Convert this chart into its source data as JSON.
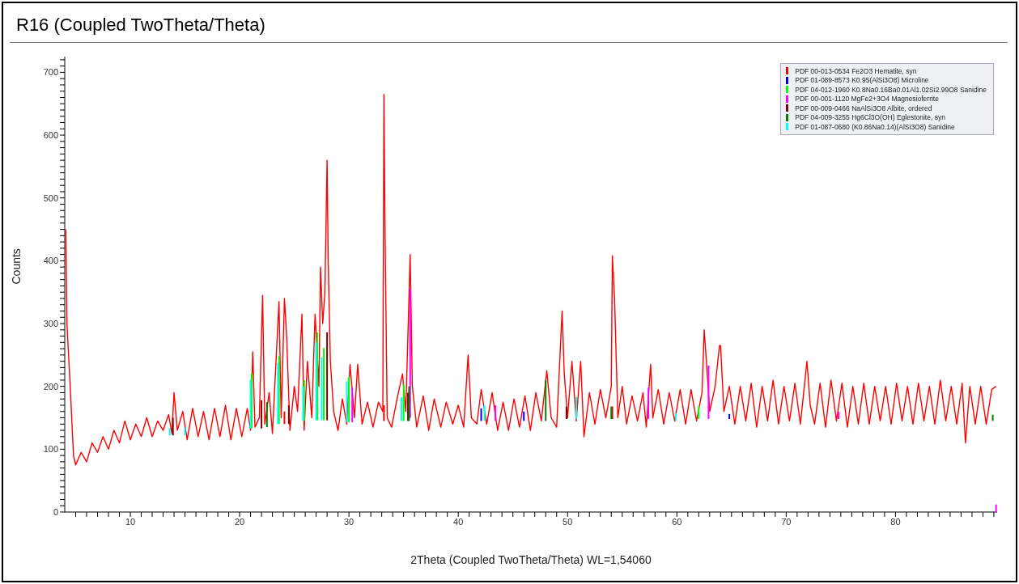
{
  "chart_data": {
    "type": "line",
    "title": "R16 (Coupled TwoTheta/Theta)",
    "xlabel": "2Theta (Coupled TwoTheta/Theta) WL=1,54060",
    "ylabel": "Counts",
    "xlim": [
      4,
      89.3
    ],
    "ylim": [
      0,
      725
    ],
    "xticks": [
      {
        "value": 5,
        "label": null
      },
      {
        "value": 6,
        "label": null
      },
      {
        "value": 7,
        "label": null
      },
      {
        "value": 8,
        "label": null
      },
      {
        "value": 9,
        "label": null
      },
      10,
      {
        "value": 11,
        "label": null
      },
      {
        "value": 12,
        "label": null
      },
      {
        "value": 13,
        "label": null
      },
      {
        "value": 14,
        "label": null
      },
      {
        "value": 15,
        "label": null
      },
      {
        "value": 16,
        "label": null
      },
      {
        "value": 17,
        "label": null
      },
      {
        "value": 18,
        "label": null
      },
      {
        "value": 19,
        "label": null
      },
      20,
      {
        "value": 21,
        "label": null
      },
      {
        "value": 22,
        "label": null
      },
      {
        "value": 23,
        "label": null
      },
      {
        "value": 24,
        "label": null
      },
      {
        "value": 25,
        "label": null
      },
      {
        "value": 26,
        "label": null
      },
      {
        "value": 27,
        "label": null
      },
      {
        "value": 28,
        "label": null
      },
      {
        "value": 29,
        "label": null
      },
      30,
      {
        "value": 31,
        "label": null
      },
      {
        "value": 32,
        "label": null
      },
      {
        "value": 33,
        "label": null
      },
      {
        "value": 34,
        "label": null
      },
      {
        "value": 35,
        "label": null
      },
      {
        "value": 36,
        "label": null
      },
      {
        "value": 37,
        "label": null
      },
      {
        "value": 38,
        "label": null
      },
      {
        "value": 39,
        "label": null
      },
      40,
      {
        "value": 41,
        "label": null
      },
      {
        "value": 42,
        "label": null
      },
      {
        "value": 43,
        "label": null
      },
      {
        "value": 44,
        "label": null
      },
      {
        "value": 45,
        "label": null
      },
      {
        "value": 46,
        "label": null
      },
      {
        "value": 47,
        "label": null
      },
      {
        "value": 48,
        "label": null
      },
      {
        "value": 49,
        "label": null
      },
      50,
      {
        "value": 51,
        "label": null
      },
      {
        "value": 52,
        "label": null
      },
      {
        "value": 53,
        "label": null
      },
      {
        "value": 54,
        "label": null
      },
      {
        "value": 55,
        "label": null
      },
      {
        "value": 56,
        "label": null
      },
      {
        "value": 57,
        "label": null
      },
      {
        "value": 58,
        "label": null
      },
      {
        "value": 59,
        "label": null
      },
      60,
      {
        "value": 61,
        "label": null
      },
      {
        "value": 62,
        "label": null
      },
      {
        "value": 63,
        "label": null
      },
      {
        "value": 64,
        "label": null
      },
      {
        "value": 65,
        "label": null
      },
      {
        "value": 66,
        "label": null
      },
      {
        "value": 67,
        "label": null
      },
      {
        "value": 68,
        "label": null
      },
      {
        "value": 69,
        "label": null
      },
      70,
      {
        "value": 71,
        "label": null
      },
      {
        "value": 72,
        "label": null
      },
      {
        "value": 73,
        "label": null
      },
      {
        "value": 74,
        "label": null
      },
      {
        "value": 75,
        "label": null
      },
      {
        "value": 76,
        "label": null
      },
      {
        "value": 77,
        "label": null
      },
      {
        "value": 78,
        "label": null
      },
      {
        "value": 79,
        "label": null
      },
      80,
      {
        "value": 81,
        "label": null
      },
      {
        "value": 82,
        "label": null
      },
      {
        "value": 83,
        "label": null
      },
      {
        "value": 84,
        "label": null
      },
      {
        "value": 85,
        "label": null
      },
      {
        "value": 86,
        "label": null
      },
      {
        "value": 87,
        "label": null
      },
      {
        "value": 88,
        "label": null
      },
      {
        "value": 89,
        "label": null
      }
    ],
    "yticks": [
      0,
      {
        "value": 10,
        "label": null
      },
      {
        "value": 20,
        "label": null
      },
      {
        "value": 30,
        "label": null
      },
      {
        "value": 40,
        "label": null
      },
      {
        "value": 50,
        "label": null
      },
      {
        "value": 60,
        "label": null
      },
      {
        "value": 70,
        "label": null
      },
      {
        "value": 80,
        "label": null
      },
      {
        "value": 90,
        "label": null
      },
      100,
      {
        "value": 110,
        "label": null
      },
      {
        "value": 120,
        "label": null
      },
      {
        "value": 130,
        "label": null
      },
      {
        "value": 140,
        "label": null
      },
      {
        "value": 150,
        "label": null
      },
      {
        "value": 160,
        "label": null
      },
      {
        "value": 170,
        "label": null
      },
      {
        "value": 180,
        "label": null
      },
      {
        "value": 190,
        "label": null
      },
      200,
      {
        "value": 210,
        "label": null
      },
      {
        "value": 220,
        "label": null
      },
      {
        "value": 230,
        "label": null
      },
      {
        "value": 240,
        "label": null
      },
      {
        "value": 250,
        "label": null
      },
      {
        "value": 260,
        "label": null
      },
      {
        "value": 270,
        "label": null
      },
      {
        "value": 280,
        "label": null
      },
      {
        "value": 290,
        "label": null
      },
      300,
      {
        "value": 310,
        "label": null
      },
      {
        "value": 320,
        "label": null
      },
      {
        "value": 330,
        "label": null
      },
      {
        "value": 340,
        "label": null
      },
      {
        "value": 350,
        "label": null
      },
      {
        "value": 360,
        "label": null
      },
      {
        "value": 370,
        "label": null
      },
      {
        "value": 380,
        "label": null
      },
      {
        "value": 390,
        "label": null
      },
      400,
      {
        "value": 410,
        "label": null
      },
      {
        "value": 420,
        "label": null
      },
      {
        "value": 430,
        "label": null
      },
      {
        "value": 440,
        "label": null
      },
      {
        "value": 450,
        "label": null
      },
      {
        "value": 460,
        "label": null
      },
      {
        "value": 470,
        "label": null
      },
      {
        "value": 480,
        "label": null
      },
      {
        "value": 490,
        "label": null
      },
      500,
      {
        "value": 510,
        "label": null
      },
      {
        "value": 520,
        "label": null
      },
      {
        "value": 530,
        "label": null
      },
      {
        "value": 540,
        "label": null
      },
      {
        "value": 550,
        "label": null
      },
      {
        "value": 560,
        "label": null
      },
      {
        "value": 570,
        "label": null
      },
      {
        "value": 580,
        "label": null
      },
      {
        "value": 590,
        "label": null
      },
      600,
      {
        "value": 610,
        "label": null
      },
      {
        "value": 620,
        "label": null
      },
      {
        "value": 630,
        "label": null
      },
      {
        "value": 640,
        "label": null
      },
      {
        "value": 650,
        "label": null
      },
      {
        "value": 660,
        "label": null
      },
      {
        "value": 670,
        "label": null
      },
      {
        "value": 680,
        "label": null
      },
      {
        "value": 690,
        "label": null
      },
      700,
      {
        "value": 710,
        "label": null
      },
      {
        "value": 720,
        "label": null
      }
    ],
    "legend": "top right",
    "marker": "none",
    "line_style": "solid",
    "series": [
      {
        "color": "#ff0000",
        "x": [
          4.1,
          4.2,
          4.5,
          4.8,
          5.0,
          5.5,
          6.0,
          6.5,
          7.0,
          7.5,
          8.0,
          8.5,
          9.0,
          9.5,
          10.0,
          10.5,
          11.0,
          11.5,
          12.0,
          12.5,
          13.0,
          13.5,
          13.8,
          14.0,
          14.3,
          14.8,
          15.2,
          15.7,
          16.2,
          16.7,
          17.2,
          17.7,
          18.2,
          18.7,
          19.2,
          19.7,
          20.2,
          20.7,
          21.0,
          21.2,
          21.4,
          21.8,
          22.1,
          22.3,
          22.7,
          23.0,
          23.3,
          23.6,
          23.8,
          24.1,
          24.3,
          24.6,
          25.0,
          25.3,
          25.7,
          25.9,
          26.2,
          26.6,
          26.9,
          27.25,
          27.4,
          27.6,
          27.8,
          28.0,
          28.1,
          28.3,
          28.6,
          29.0,
          29.4,
          29.8,
          30.1,
          30.5,
          30.8,
          31.2,
          31.7,
          32.2,
          32.7,
          33.1,
          33.2,
          33.3,
          33.5,
          33.9,
          34.4,
          34.9,
          35.2,
          35.6,
          35.8,
          36.2,
          36.8,
          37.3,
          37.8,
          38.4,
          38.9,
          39.5,
          40.0,
          40.5,
          40.9,
          41.2,
          41.7,
          42.1,
          42.6,
          43.1,
          43.6,
          44.1,
          44.6,
          45.1,
          45.6,
          46.1,
          46.6,
          47.1,
          47.6,
          48.1,
          48.5,
          49.0,
          49.5,
          49.7,
          50.0,
          50.4,
          50.8,
          51.2,
          51.5,
          52.0,
          52.5,
          53.0,
          53.5,
          54.0,
          54.1,
          54.3,
          54.6,
          55.0,
          55.4,
          55.9,
          56.4,
          56.9,
          57.2,
          57.6,
          57.8,
          58.3,
          58.8,
          59.3,
          59.8,
          60.3,
          60.8,
          61.3,
          61.8,
          62.3,
          62.5,
          62.7,
          63.0,
          63.5,
          63.9,
          64.0,
          64.3,
          64.8,
          65.3,
          65.8,
          66.3,
          66.8,
          67.3,
          67.8,
          68.3,
          68.8,
          69.3,
          69.8,
          70.3,
          70.8,
          71.3,
          71.9,
          72.2,
          72.6,
          73.1,
          73.6,
          74.1,
          74.6,
          75.1,
          75.6,
          76.1,
          76.6,
          77.1,
          77.6,
          78.1,
          78.6,
          79.1,
          79.6,
          80.1,
          80.6,
          81.1,
          81.6,
          82.1,
          82.6,
          83.1,
          83.6,
          84.1,
          84.6,
          85.1,
          85.6,
          86.1,
          86.4,
          86.8,
          87.3,
          87.8,
          88.3,
          88.8,
          89.2
        ],
        "values": [
          450,
          300,
          200,
          90,
          75,
          95,
          80,
          110,
          95,
          120,
          100,
          130,
          110,
          145,
          115,
          140,
          120,
          150,
          120,
          145,
          130,
          155,
          125,
          190,
          130,
          160,
          115,
          165,
          120,
          160,
          115,
          165,
          120,
          170,
          115,
          165,
          120,
          165,
          130,
          255,
          135,
          150,
          345,
          140,
          190,
          125,
          230,
          335,
          150,
          340,
          280,
          130,
          200,
          160,
          315,
          130,
          240,
          150,
          315,
          200,
          390,
          300,
          350,
          560,
          400,
          240,
          160,
          130,
          180,
          140,
          235,
          150,
          235,
          140,
          175,
          135,
          175,
          160,
          665,
          450,
          150,
          135,
          180,
          220,
          160,
          410,
          200,
          135,
          185,
          130,
          180,
          135,
          175,
          140,
          170,
          135,
          250,
          150,
          140,
          195,
          140,
          190,
          130,
          175,
          130,
          180,
          135,
          185,
          130,
          190,
          145,
          225,
          150,
          135,
          320,
          220,
          150,
          240,
          145,
          240,
          120,
          190,
          140,
          195,
          150,
          200,
          408,
          340,
          150,
          200,
          140,
          185,
          145,
          190,
          135,
          235,
          150,
          195,
          140,
          190,
          145,
          195,
          140,
          195,
          145,
          190,
          290,
          240,
          160,
          200,
          265,
          265,
          160,
          200,
          140,
          200,
          145,
          205,
          135,
          200,
          145,
          210,
          140,
          200,
          145,
          205,
          140,
          240,
          170,
          140,
          205,
          135,
          210,
          145,
          205,
          135,
          200,
          140,
          205,
          140,
          200,
          145,
          200,
          140,
          205,
          145,
          200,
          140,
          205,
          145,
          200,
          140,
          210,
          145,
          200,
          140,
          205,
          110,
          200,
          140,
          200,
          140,
          195,
          200
        ]
      },
      {
        "type": "bar",
        "name": "PDF 00-013-0534 Fe2O3 Hematite, syn",
        "color": "#ff0000",
        "x": [
          24.1,
          33.2,
          54.1
        ],
        "base": [
          140,
          145,
          148
        ],
        "values": [
          20,
          25,
          20
        ]
      },
      {
        "type": "bar",
        "name": "PDF 01-089-8573 K0.95(AlSi3O8) Microline",
        "color": "#0000ff",
        "x": [
          42.1,
          46.0,
          64.8
        ],
        "base": [
          145,
          145,
          148
        ],
        "values": [
          20,
          15,
          8
        ]
      },
      {
        "type": "bar",
        "name": "PDF 04-012-1960 K0.8Na0.16Ba0.01Al1.02Si2.99O8 Sanidine",
        "color": "#00ff00",
        "x": [
          21.1,
          23.6,
          25.9,
          27.1,
          27.7,
          30.0,
          35.0,
          62.0
        ],
        "base": [
          133,
          140,
          145,
          146,
          146,
          143,
          145,
          148
        ],
        "values": [
          88,
          108,
          65,
          140,
          115,
          72,
          58,
          20
        ]
      },
      {
        "type": "bar",
        "name": "PDF 00-001-1120 MgFe2+3O4 Magnesioferrite",
        "color": "#ff00ff",
        "x": [
          30.3,
          35.6,
          43.4,
          57.4,
          62.9,
          74.8,
          89.2
        ],
        "base": [
          143,
          150,
          145,
          148,
          148,
          148,
          0
        ],
        "values": [
          55,
          205,
          25,
          50,
          85,
          12,
          12
        ]
      },
      {
        "type": "bar",
        "name": "PDF 00-009-0466 NaAlSi3O8 Albite, ordered",
        "color": "#800000",
        "x": [
          13.9,
          22.0,
          24.5,
          28.0,
          35.4,
          49.9
        ],
        "base": [
          122,
          133,
          140,
          146,
          145,
          148
        ],
        "values": [
          28,
          45,
          30,
          140,
          45,
          20
        ]
      },
      {
        "type": "bar",
        "name": "PDF 04-009-3255 Hg6Cl3O(OH) Eglestonite, syn",
        "color": "#008000",
        "x": [
          22.5,
          35.5,
          48.0,
          54.0,
          88.9
        ],
        "base": [
          135,
          145,
          145,
          148,
          145
        ],
        "values": [
          40,
          55,
          65,
          20,
          10
        ]
      },
      {
        "type": "bar",
        "name": "PDF 01-087-0680 (K0.86Na0.14)(AlSi3O8) Sanidine",
        "color": "#00ffff",
        "x": [
          13.6,
          15.0,
          21.0,
          23.5,
          25.8,
          27.0,
          27.5,
          29.8,
          34.8,
          42.4,
          50.8,
          59.9
        ],
        "base": [
          122,
          122,
          133,
          140,
          145,
          146,
          146,
          143,
          145,
          145,
          148,
          145
        ],
        "values": [
          12,
          12,
          78,
          97,
          55,
          124,
          100,
          65,
          38,
          25,
          35,
          12
        ]
      }
    ]
  }
}
